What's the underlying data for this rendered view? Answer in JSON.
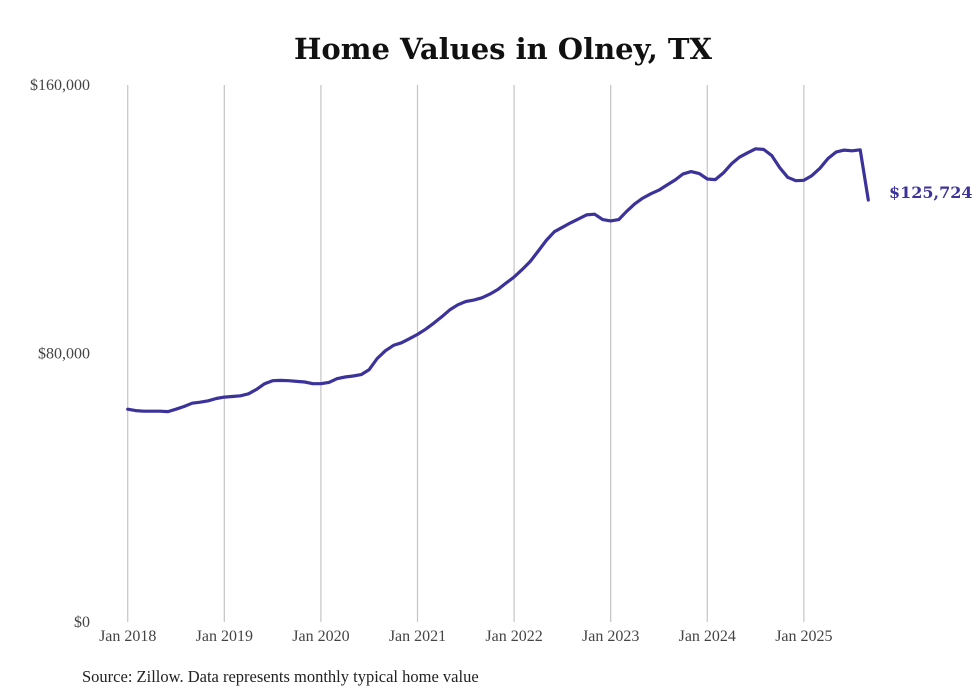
{
  "chart_data": {
    "type": "line",
    "title": "Home Values in Olney, TX",
    "xlabel": "",
    "ylabel": "",
    "ylim": [
      0,
      160000
    ],
    "y_ticks": [
      0,
      80000,
      160000
    ],
    "y_tick_labels": [
      "$0",
      "$80,000",
      "$160,000"
    ],
    "x_range": [
      2017.92,
      2025.84
    ],
    "x_ticks": [
      2018,
      2019,
      2020,
      2021,
      2022,
      2023,
      2024,
      2025
    ],
    "x_tick_labels": [
      "Jan 2018",
      "Jan 2019",
      "Jan 2020",
      "Jan 2021",
      "Jan 2022",
      "Jan 2023",
      "Jan 2024",
      "Jan 2025"
    ],
    "grid": "vertical",
    "series": [
      {
        "name": "Typical home value",
        "color": "#3b329a",
        "x": [
          2018.0,
          2018.083,
          2018.167,
          2018.25,
          2018.333,
          2018.417,
          2018.5,
          2018.583,
          2018.667,
          2018.75,
          2018.833,
          2018.917,
          2019.0,
          2019.083,
          2019.167,
          2019.25,
          2019.333,
          2019.417,
          2019.5,
          2019.583,
          2019.667,
          2019.75,
          2019.833,
          2019.917,
          2020.0,
          2020.083,
          2020.167,
          2020.25,
          2020.333,
          2020.417,
          2020.5,
          2020.583,
          2020.667,
          2020.75,
          2020.833,
          2020.917,
          2021.0,
          2021.083,
          2021.167,
          2021.25,
          2021.333,
          2021.417,
          2021.5,
          2021.583,
          2021.667,
          2021.75,
          2021.833,
          2021.917,
          2022.0,
          2022.083,
          2022.167,
          2022.25,
          2022.333,
          2022.417,
          2022.5,
          2022.583,
          2022.667,
          2022.75,
          2022.833,
          2022.917,
          2023.0,
          2023.083,
          2023.167,
          2023.25,
          2023.333,
          2023.417,
          2023.5,
          2023.583,
          2023.667,
          2023.75,
          2023.833,
          2023.917,
          2024.0,
          2024.083,
          2024.167,
          2024.25,
          2024.333,
          2024.417,
          2024.5,
          2024.583,
          2024.667,
          2024.75,
          2024.833,
          2024.917,
          2025.0,
          2025.083,
          2025.167,
          2025.25,
          2025.333,
          2025.417,
          2025.5,
          2025.583,
          2025.667
        ],
        "values": [
          63400,
          63000,
          62800,
          62800,
          62800,
          62700,
          63400,
          64200,
          65200,
          65500,
          65900,
          66600,
          67000,
          67200,
          67400,
          68000,
          69300,
          71000,
          71900,
          72000,
          71900,
          71700,
          71500,
          71000,
          71000,
          71400,
          72500,
          73000,
          73300,
          73700,
          75200,
          78500,
          80800,
          82400,
          83200,
          84400,
          85700,
          87200,
          89000,
          90900,
          93000,
          94500,
          95500,
          95900,
          96600,
          97700,
          99100,
          101000,
          102800,
          105000,
          107400,
          110500,
          113700,
          116300,
          117600,
          118900,
          120100,
          121300,
          121500,
          119900,
          119500,
          119900,
          122400,
          124600,
          126300,
          127600,
          128700,
          130200,
          131700,
          133500,
          134200,
          133600,
          132000,
          131800,
          133800,
          136500,
          138500,
          139800,
          141000,
          140800,
          139000,
          135400,
          132500,
          131500,
          131600,
          133000,
          135200,
          138100,
          140000,
          140600,
          140400,
          140700,
          125724
        ]
      }
    ],
    "end_label": "$125,724"
  },
  "source_note": "Source: Zillow. Data represents monthly typical home value"
}
